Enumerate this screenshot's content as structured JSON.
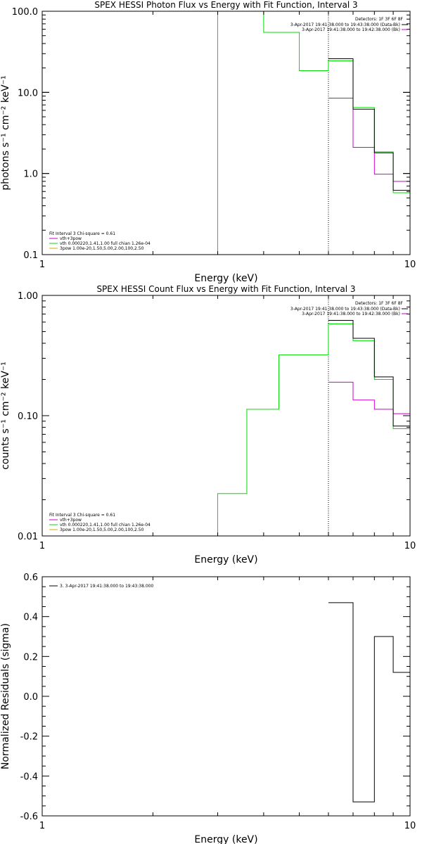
{
  "colors": {
    "data": "#000000",
    "total": "#cc00cc",
    "vth": "#00dd00",
    "pow": "#ddaa00",
    "axis": "#000000"
  },
  "chart_data": [
    {
      "type": "line",
      "title": "SPEX HESSI Photon Flux vs Energy with Fit Function, Interval 3",
      "xlabel": "Energy (keV)",
      "ylabel": "photons s⁻¹ cm⁻² keV⁻¹",
      "xscale": "log",
      "yscale": "log",
      "xlim": [
        1,
        10
      ],
      "ylim": [
        0.1,
        100
      ],
      "xtick_labels": [
        {
          "v": 1,
          "t": "1"
        },
        {
          "v": 10,
          "t": "10"
        }
      ],
      "ytick_labels": [
        {
          "v": 0.1,
          "t": "0.1"
        },
        {
          "v": 1,
          "t": "1.0"
        },
        {
          "v": 10,
          "t": "10.0"
        },
        {
          "v": 100,
          "t": "100.0"
        }
      ],
      "vline": 6.0,
      "series": [
        {
          "id": "data",
          "edges": [
            6.0,
            7.0,
            8.0,
            9.0,
            10.0
          ],
          "values": [
            26.0,
            6.2,
            1.8,
            0.62
          ]
        },
        {
          "id": "total",
          "edges": [
            6.0,
            7.0,
            8.0,
            9.0,
            10.0
          ],
          "values": [
            8.5,
            2.1,
            0.98,
            0.8
          ],
          "drop_last": true
        },
        {
          "id": "vth",
          "edges": [
            3.0,
            4.0,
            5.0,
            6.0,
            7.0,
            8.0,
            9.0,
            10.0
          ],
          "values": [
            100.0,
            55.0,
            18.5,
            24.5,
            6.5,
            1.85,
            0.58
          ],
          "drop_first": true,
          "drop_last": true
        }
      ],
      "legend_top": {
        "header": "Detectors: 1F 3F 6F 8F",
        "lines": [
          {
            "series": "data",
            "text": "3-Apr-2017 19:41:38.000 to 19:43:38.000 (Data-Bk)"
          },
          {
            "series": "total",
            "text": "3-Apr-2017 19:41:38.000 to 19:42:38.000 (Bk)"
          }
        ]
      },
      "legend_fit": {
        "header": "Fit Interval 3   Chi-square = 0.61",
        "lines": [
          {
            "series": "total",
            "text": "vth+3pow"
          },
          {
            "series": "vth",
            "text": "vth 0.000220,1.41,1.00  full chian 1.26e-04"
          },
          {
            "series": "pow",
            "text": "3pow 1.00e-20,1.50,5.00,2.00,100,2.50"
          }
        ]
      }
    },
    {
      "type": "line",
      "title": "SPEX HESSI Count Flux vs Energy with Fit Function, Interval 3",
      "xlabel": "Energy (keV)",
      "ylabel": "counts s⁻¹ cm⁻² keV⁻¹",
      "xscale": "log",
      "yscale": "log",
      "xlim": [
        1,
        10
      ],
      "ylim": [
        0.01,
        1.0
      ],
      "xtick_labels": [
        {
          "v": 1,
          "t": "1"
        },
        {
          "v": 10,
          "t": "10"
        }
      ],
      "ytick_labels": [
        {
          "v": 0.01,
          "t": "0.01"
        },
        {
          "v": 0.1,
          "t": "0.10"
        },
        {
          "v": 1.0,
          "t": "1.00"
        }
      ],
      "vline": 6.0,
      "series": [
        {
          "id": "data",
          "edges": [
            6.0,
            7.0,
            8.0,
            9.0,
            10.0
          ],
          "values": [
            0.62,
            0.44,
            0.21,
            0.082
          ]
        },
        {
          "id": "total",
          "edges": [
            6.0,
            7.0,
            8.0,
            9.0,
            10.0
          ],
          "values": [
            0.19,
            0.135,
            0.113,
            0.104
          ],
          "drop_last": true
        },
        {
          "id": "vth",
          "edges": [
            3.0,
            3.6,
            4.4,
            5.4,
            6.0,
            7.0,
            8.0,
            9.0,
            10.0
          ],
          "values": [
            0.0225,
            0.113,
            0.32,
            0.32,
            0.58,
            0.42,
            0.2,
            0.078
          ],
          "drop_first": true,
          "drop_last": true
        }
      ],
      "legend_top": {
        "header": "Detectors: 1F 3F 6F 8F",
        "lines": [
          {
            "series": "data",
            "text": "3-Apr-2017 19:41:38.000 to 19:43:38.000 (Data-Bk)"
          },
          {
            "series": "total",
            "text": "3-Apr-2017 19:41:38.000 to 19:42:38.000 (Bk)"
          }
        ]
      },
      "legend_fit": {
        "header": "Fit Interval 3   Chi-square = 0.61",
        "lines": [
          {
            "series": "total",
            "text": "vth+3pow"
          },
          {
            "series": "vth",
            "text": "vth 0.000220,1.41,1.00  full chian 1.26e-04"
          },
          {
            "series": "pow",
            "text": "3pow 1.00e-20,1.50,5.00,2.00,100,2.50"
          }
        ]
      }
    },
    {
      "type": "line",
      "title": "",
      "xlabel": "Energy (keV)",
      "ylabel": "Normalized Residuals (sigma)",
      "xscale": "log",
      "yscale": "linear",
      "xlim": [
        1,
        10
      ],
      "ylim": [
        -0.6,
        0.6
      ],
      "xtick_labels": [
        {
          "v": 1,
          "t": "1"
        },
        {
          "v": 10,
          "t": "10"
        }
      ],
      "ytick_labels": [
        {
          "v": 0.6,
          "t": "0.6"
        },
        {
          "v": 0.4,
          "t": "0.4"
        },
        {
          "v": 0.2,
          "t": "0.2"
        },
        {
          "v": 0.0,
          "t": "0.0"
        },
        {
          "v": -0.2,
          "t": "-0.2"
        },
        {
          "v": -0.4,
          "t": "-0.4"
        },
        {
          "v": -0.6,
          "t": "-0.6"
        }
      ],
      "series": [
        {
          "id": "data",
          "edges": [
            6.0,
            7.0,
            8.0,
            9.0,
            10.0
          ],
          "values": [
            0.47,
            -0.53,
            0.3,
            0.12
          ]
        }
      ],
      "legend_top": {
        "header": "",
        "lines": [
          {
            "series": "data",
            "text": "3.  3-Apr-2017 19:41:38.000 to 19:43:38.000"
          }
        ]
      }
    }
  ]
}
